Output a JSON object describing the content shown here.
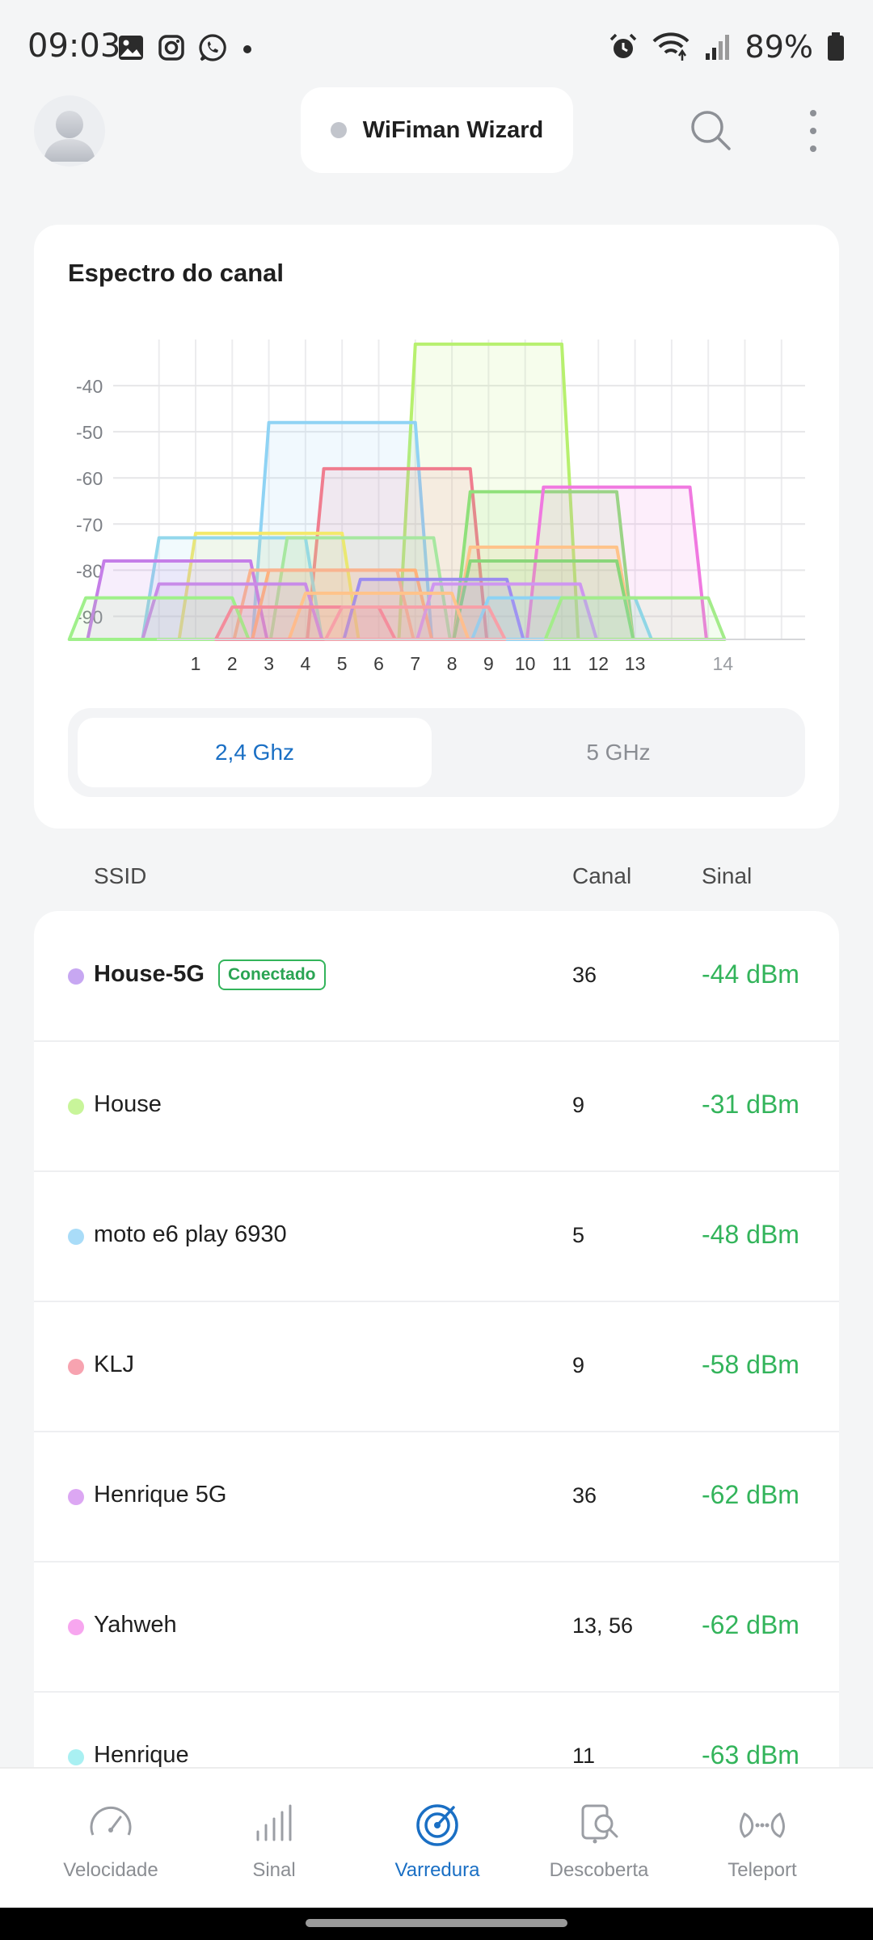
{
  "status_bar": {
    "time": "09:03",
    "battery": "89%",
    "left_icons": [
      "gallery-icon",
      "instagram-icon",
      "whatsapp-icon",
      "dot-icon"
    ],
    "right_icons": [
      "alarm-icon",
      "wifi-icon",
      "cell-signal-icon",
      "battery-icon"
    ]
  },
  "header": {
    "wizard_label": "WiFiman Wizard",
    "icons": [
      "avatar",
      "search-icon",
      "more-vertical-icon"
    ]
  },
  "chart_card": {
    "title": "Espectro do canal",
    "band_tabs": [
      {
        "label": "2,4 Ghz",
        "active": true
      },
      {
        "label": "5 GHz",
        "active": false
      }
    ]
  },
  "chart_data": {
    "type": "area",
    "x_ticks": [
      "1",
      "2",
      "3",
      "4",
      "5",
      "6",
      "7",
      "8",
      "9",
      "10",
      "11",
      "12",
      "13",
      "14"
    ],
    "y_ticks": [
      "-40",
      "-50",
      "-60",
      "-70",
      "-80",
      "-90"
    ],
    "ylim": [
      -95,
      -30
    ],
    "series": [
      {
        "center": 9,
        "signal": -31,
        "color": "#b7f06e"
      },
      {
        "center": 5,
        "signal": -48,
        "color": "#8fd3f4"
      },
      {
        "center": 6.5,
        "signal": -58,
        "color": "#f07d8f"
      },
      {
        "center": 10.5,
        "signal": -63,
        "color": "#8fe07a"
      },
      {
        "center": 12.5,
        "signal": -62,
        "color": "#f078e0"
      },
      {
        "center": 3,
        "signal": -72,
        "color": "#f4e96a"
      },
      {
        "center": 2,
        "signal": -73,
        "color": "#93d8ec"
      },
      {
        "center": 5.5,
        "signal": -73,
        "color": "#a7e7a0"
      },
      {
        "center": 0.5,
        "signal": -78,
        "color": "#c57ee8"
      },
      {
        "center": 10.5,
        "signal": -75,
        "color": "#ffc38a"
      },
      {
        "center": 10.5,
        "signal": -78,
        "color": "#8ad67a"
      },
      {
        "center": 5,
        "signal": -80,
        "color": "#ffb27a"
      },
      {
        "center": 4.5,
        "signal": -80,
        "color": "#f9b390"
      },
      {
        "center": 2,
        "signal": -83,
        "color": "#c88be8"
      },
      {
        "center": 7.5,
        "signal": -82,
        "color": "#9b8cf0"
      },
      {
        "center": 9.5,
        "signal": -83,
        "color": "#ce96f0"
      },
      {
        "center": 6,
        "signal": -85,
        "color": "#ffc38a"
      },
      {
        "center": 0,
        "signal": -86,
        "color": "#9ff08a"
      },
      {
        "center": 11,
        "signal": -86,
        "color": "#8dd3f4"
      },
      {
        "center": 13,
        "signal": -86,
        "color": "#a3ec8a"
      },
      {
        "center": 4,
        "signal": -88,
        "color": "#f48c9c"
      },
      {
        "center": 7,
        "signal": -88,
        "color": "#f7a0a8"
      }
    ]
  },
  "list": {
    "headers": {
      "ssid": "SSID",
      "channel": "Canal",
      "signal": "Sinal"
    },
    "rows": [
      {
        "ssid": "House-5G",
        "badge": "Conectado",
        "channel": "36",
        "signal": "-44 dBm",
        "dot_color": "#c7a7f2",
        "bold": true
      },
      {
        "ssid": "House",
        "channel": "9",
        "signal": "-31 dBm",
        "dot_color": "#c8f59a"
      },
      {
        "ssid": "moto e6 play 6930",
        "channel": "5",
        "signal": "-48 dBm",
        "dot_color": "#a9dcf8"
      },
      {
        "ssid": "KLJ",
        "channel": "9",
        "signal": "-58 dBm",
        "dot_color": "#f7a3b0"
      },
      {
        "ssid": "Henrique 5G",
        "channel": "36",
        "signal": "-62 dBm",
        "dot_color": "#dca7f3"
      },
      {
        "ssid": "Yahweh",
        "channel": "13, 56",
        "signal": "-62 dBm",
        "dot_color": "#f7a6ef"
      },
      {
        "ssid": "Henrique",
        "channel": "11",
        "signal": "-63 dBm",
        "dot_color": "#a9f0f2"
      }
    ]
  },
  "bottom_nav": {
    "items": [
      {
        "label": "Velocidade",
        "icon": "speedometer-icon",
        "active": false
      },
      {
        "label": "Sinal",
        "icon": "signal-bars-icon",
        "active": false
      },
      {
        "label": "Varredura",
        "icon": "radar-icon",
        "active": true
      },
      {
        "label": "Descoberta",
        "icon": "device-search-icon",
        "active": false
      },
      {
        "label": "Teleport",
        "icon": "teleport-icon",
        "active": false
      }
    ]
  },
  "colors": {
    "accent": "#1a6fc4",
    "signal_green": "#33b45b",
    "background": "#f4f5f6"
  }
}
